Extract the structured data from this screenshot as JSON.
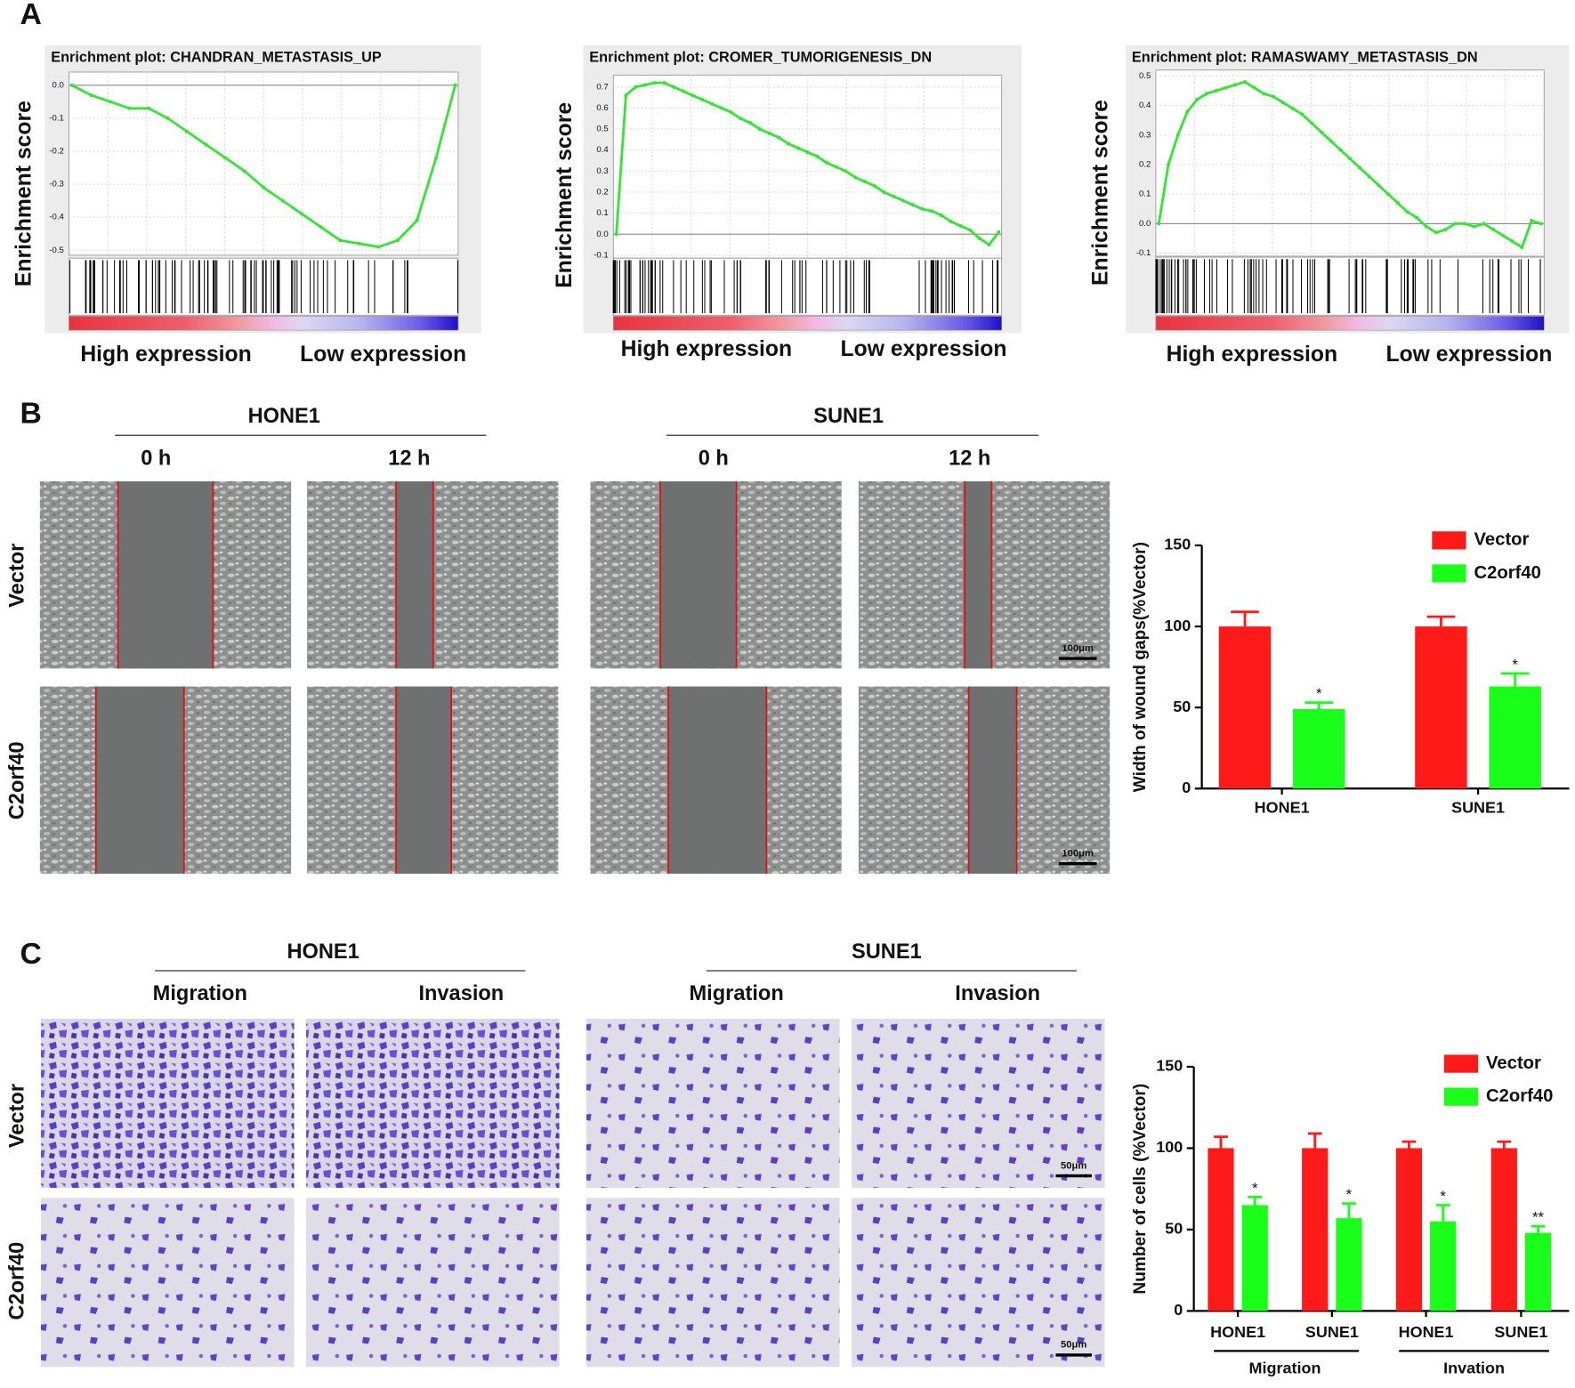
{
  "panel_labels": [
    "A",
    "B",
    "C"
  ],
  "wound_assay": {
    "cell_lines": [
      "HONE1",
      "SUNE1"
    ],
    "timepoints": [
      "0 h",
      "12 h"
    ],
    "rows": [
      "Vector",
      "C2orf40"
    ],
    "scale_bar": "100μm"
  },
  "transwell_assay": {
    "cell_lines": [
      "HONE1",
      "SUNE1"
    ],
    "assays": [
      "Migration",
      "Invasion"
    ],
    "rows": [
      "Vector",
      "C2orf40"
    ],
    "scale_bar": "50μm"
  },
  "chart_data": [
    {
      "type": "line",
      "title": "Enrichment plot: CHANDRAN_METASTASIS_UP",
      "ylabel": "Enrichment score",
      "axis_annotations": [
        "High expression",
        "Low expression"
      ],
      "color": "#33e633",
      "values": [
        0,
        -0.03,
        -0.05,
        -0.07,
        -0.07,
        -0.1,
        -0.14,
        -0.18,
        -0.22,
        -0.26,
        -0.31,
        -0.35,
        -0.39,
        -0.43,
        -0.47,
        -0.48,
        -0.49,
        -0.47,
        -0.41,
        -0.22,
        0
      ],
      "ylim": [
        -0.515,
        0.04
      ],
      "yticks": [
        {
          "value": 0,
          "label": "0.0"
        },
        -0.1,
        -0.2,
        -0.3,
        -0.4,
        -0.5
      ],
      "grid": true
    },
    {
      "type": "line",
      "title": "Enrichment plot: CROMER_TUMORIGENESIS_DN",
      "ylabel": "Enrichment score",
      "axis_annotations": [
        "High expression",
        "Low expression"
      ],
      "color": "#33e633",
      "values": [
        0,
        0.66,
        0.7,
        0.71,
        0.72,
        0.72,
        0.7,
        0.68,
        0.66,
        0.64,
        0.62,
        0.6,
        0.58,
        0.55,
        0.53,
        0.5,
        0.48,
        0.46,
        0.43,
        0.41,
        0.39,
        0.37,
        0.34,
        0.32,
        0.3,
        0.27,
        0.25,
        0.23,
        0.2,
        0.18,
        0.16,
        0.14,
        0.12,
        0.11,
        0.09,
        0.06,
        0.04,
        0.02,
        -0.02,
        -0.05,
        0.01
      ],
      "ylim": [
        -0.114,
        0.757
      ],
      "yticks": [
        0.7,
        0.6,
        0.5,
        0.4,
        0.3,
        0.2,
        0.1,
        {
          "value": 0,
          "label": "0.0"
        },
        -0.1
      ],
      "grid": true
    },
    {
      "type": "line",
      "title": "Enrichment plot: RAMASWAMY_METASTASIS_DN",
      "ylabel": "Enrichment score",
      "axis_annotations": [
        "High expression",
        "Low expression"
      ],
      "color": "#33e633",
      "values": [
        0,
        0.2,
        0.3,
        0.38,
        0.42,
        0.44,
        0.45,
        0.46,
        0.47,
        0.48,
        0.46,
        0.44,
        0.43,
        0.41,
        0.39,
        0.37,
        0.34,
        0.31,
        0.28,
        0.25,
        0.22,
        0.19,
        0.16,
        0.13,
        0.1,
        0.07,
        0.04,
        0.02,
        -0.01,
        -0.03,
        -0.02,
        0,
        0,
        -0.01,
        0,
        -0.02,
        -0.04,
        -0.06,
        -0.08,
        0.01,
        0
      ],
      "ylim": [
        -0.11,
        0.52
      ],
      "yticks": [
        0.5,
        0.4,
        0.3,
        0.2,
        0.1,
        {
          "value": 0,
          "label": "0.0"
        },
        -0.1
      ],
      "grid": true
    },
    {
      "type": "bar",
      "ylabel": "Width of wound gaps(%Vector)",
      "categories": [
        "HONE1",
        "SUNE1"
      ],
      "series": [
        {
          "name": "Vector",
          "color": "#ff1a1a",
          "values": [
            100,
            100
          ],
          "errors": [
            9,
            6
          ]
        },
        {
          "name": "C2orf40",
          "color": "#1aff1a",
          "values": [
            49,
            63
          ],
          "errors": [
            4,
            8
          ],
          "significance": [
            "*",
            "*"
          ]
        }
      ],
      "ylim": [
        0,
        150
      ],
      "yticks": [
        0,
        50,
        100,
        150
      ]
    },
    {
      "type": "bar",
      "ylabel": "Number of cells (%Vector)",
      "categories": [
        "HONE1",
        "SUNE1",
        "HONE1",
        "SUNE1"
      ],
      "groups": [
        "Migration",
        "Invation"
      ],
      "series": [
        {
          "name": "Vector",
          "color": "#ff1a1a",
          "values": [
            100,
            100,
            100,
            100
          ],
          "errors": [
            7,
            9,
            4,
            4
          ]
        },
        {
          "name": "C2orf40",
          "color": "#1aff1a",
          "values": [
            65,
            57,
            55,
            48
          ],
          "errors": [
            5,
            9,
            10,
            4
          ],
          "significance": [
            "*",
            "*",
            "*",
            "**"
          ]
        }
      ],
      "ylim": [
        0,
        150
      ],
      "yticks": [
        0,
        50,
        100,
        150
      ]
    }
  ]
}
